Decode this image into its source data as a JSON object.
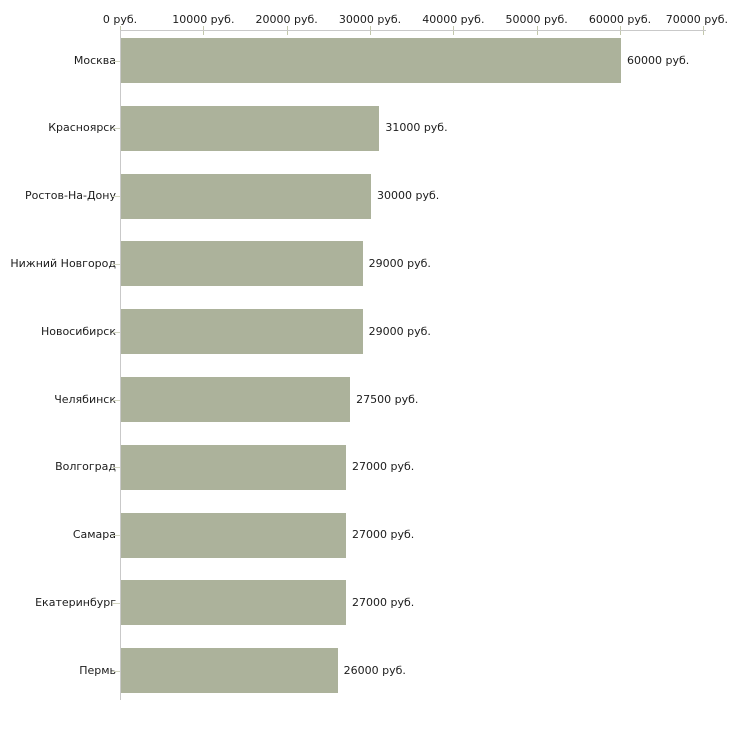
{
  "chart_data": {
    "type": "bar",
    "orientation": "horizontal",
    "title": "",
    "xlabel": "",
    "ylabel": "",
    "unit": "руб.",
    "categories": [
      "Москва",
      "Красноярск",
      "Ростов-На-Дону",
      "Нижний Новгород",
      "Новосибирск",
      "Челябинск",
      "Волгоград",
      "Самара",
      "Екатеринбург",
      "Пермь"
    ],
    "values": [
      60000,
      31000,
      30000,
      29000,
      29000,
      27500,
      27000,
      27000,
      27000,
      26000
    ],
    "value_labels": [
      "60000 руб.",
      "31000 руб.",
      "30000 руб.",
      "29000 руб.",
      "29000 руб.",
      "27500 руб.",
      "27000 руб.",
      "27000 руб.",
      "27000 руб.",
      "26000 руб."
    ],
    "x_ticks": [
      0,
      10000,
      20000,
      30000,
      40000,
      50000,
      60000,
      70000
    ],
    "x_tick_labels": [
      "0 руб.",
      "10000 руб.",
      "20000 руб.",
      "30000 руб.",
      "40000 руб.",
      "50000 руб.",
      "60000 руб.",
      "70000 руб."
    ],
    "xlim": [
      0,
      70000
    ],
    "grid": false,
    "legend": false,
    "axis_position": "top",
    "bar_color": "#acb29b",
    "axis_color": "#c9c9c9",
    "x_tick_color": "#c2c7ab",
    "y_tick_color": "#d3d6c2",
    "text_color": "#1c1c1c",
    "background_color": "#ffffff"
  }
}
